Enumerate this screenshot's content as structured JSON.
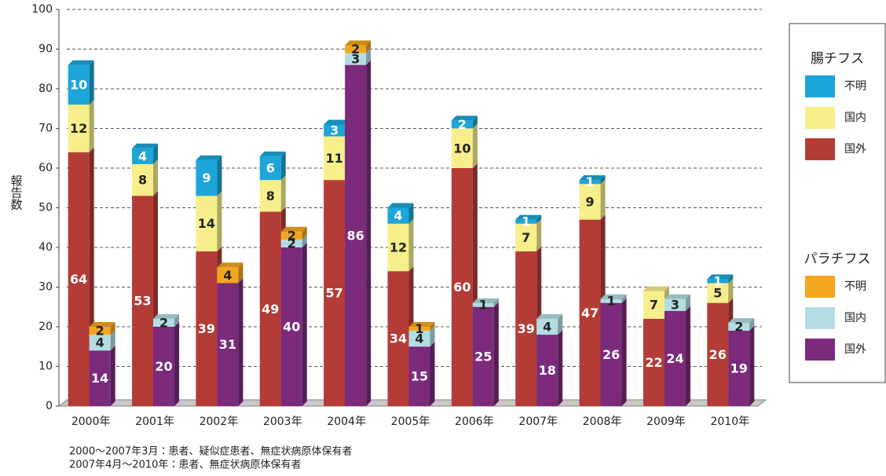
{
  "chart_data": {
    "type": "bar",
    "y_label": "報告数",
    "categories": [
      "2000年",
      "2001年",
      "2002年",
      "2003年",
      "2004年",
      "2005年",
      "2006年",
      "2007年",
      "2008年",
      "2009年",
      "2010年"
    ],
    "groups": [
      {
        "name": "腸チフス",
        "series": [
          {
            "name": "国外",
            "color": "#b43c36",
            "values": [
              64,
              53,
              39,
              49,
              57,
              34,
              60,
              39,
              47,
              22,
              26
            ]
          },
          {
            "name": "国内",
            "color": "#f6ef8c",
            "values": [
              12,
              8,
              14,
              8,
              11,
              12,
              10,
              7,
              9,
              7,
              5
            ]
          },
          {
            "name": "不明",
            "color": "#1ca6d9",
            "values": [
              10,
              4,
              9,
              6,
              3,
              4,
              2,
              1,
              1,
              null,
              1
            ]
          }
        ]
      },
      {
        "name": "パラチフス",
        "series": [
          {
            "name": "国外",
            "color": "#7b2a7c",
            "values": [
              14,
              20,
              31,
              40,
              86,
              15,
              25,
              18,
              26,
              24,
              19
            ]
          },
          {
            "name": "国内",
            "color": "#b3dde3",
            "values": [
              4,
              2,
              null,
              2,
              3,
              4,
              1,
              4,
              1,
              3,
              2
            ]
          },
          {
            "name": "不明",
            "color": "#f2a61f",
            "values": [
              2,
              null,
              4,
              2,
              2,
              1,
              null,
              null,
              null,
              null,
              null
            ]
          }
        ]
      }
    ],
    "ylim": [
      0,
      100
    ],
    "yticks": [
      0,
      10,
      20,
      30,
      40,
      50,
      60,
      70,
      80,
      90,
      100
    ],
    "grid": true,
    "notes": [
      "2000～2007年3月：患者、疑似症患者、無症状病原体保有者",
      "2007年4月～2010年：患者、無症状病原体保有者"
    ]
  }
}
